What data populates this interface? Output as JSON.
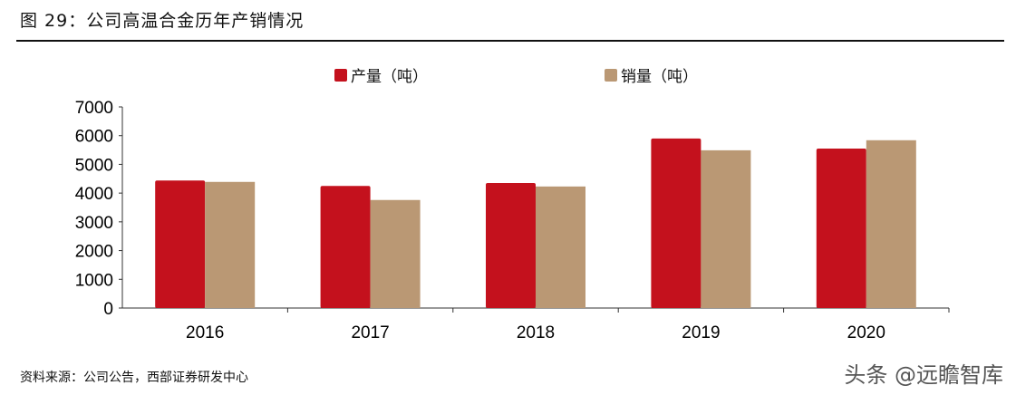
{
  "title": "图 29：公司高温合金历年产销情况",
  "source": "资料来源：公司公告，西部证券研发中心",
  "watermark": "头条 @远瞻智库",
  "colors": {
    "production": "#c4111d",
    "sales": "#ba9874"
  },
  "chart_data": {
    "type": "bar",
    "categories": [
      "2016",
      "2017",
      "2018",
      "2019",
      "2020"
    ],
    "series": [
      {
        "name": "产量（吨）",
        "values": [
          4440,
          4250,
          4350,
          5900,
          5550
        ]
      },
      {
        "name": "销量（吨）",
        "values": [
          4390,
          3760,
          4230,
          5490,
          5840
        ]
      }
    ],
    "ylim": [
      0,
      7000
    ],
    "yticks": [
      "0",
      "1000",
      "2000",
      "3000",
      "4000",
      "5000",
      "6000",
      "7000"
    ],
    "grid": false,
    "legend": "top"
  }
}
